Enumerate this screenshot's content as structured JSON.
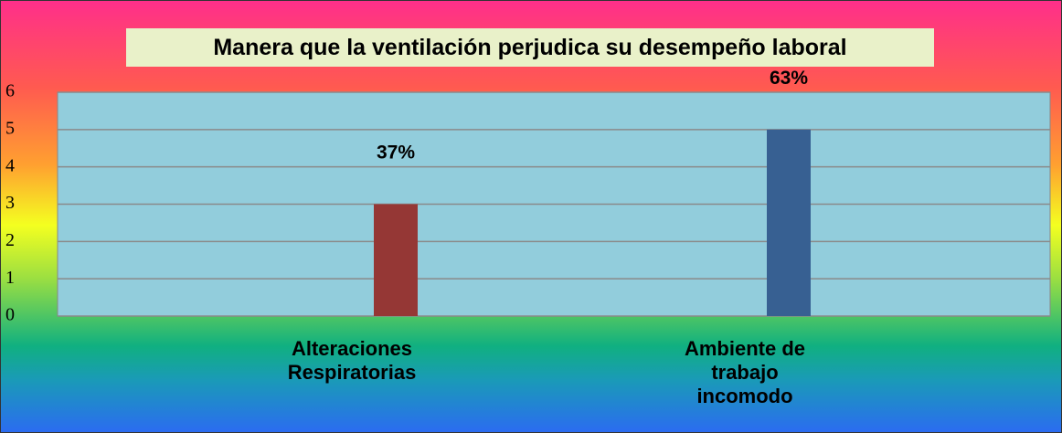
{
  "chart_data": {
    "type": "bar",
    "title": "Manera que la ventilación perjudica su desempeño laboral",
    "categories": [
      "Alteraciones Respiratorias",
      "Ambiente de trabajo incomodo"
    ],
    "values": [
      3,
      5
    ],
    "annotations": [
      "37%",
      "63%"
    ],
    "colors": [
      "#953735",
      "#376092"
    ],
    "ylim": [
      0,
      6
    ],
    "yticks": [
      0,
      1,
      2,
      3,
      4,
      5,
      6
    ],
    "grid": true
  }
}
